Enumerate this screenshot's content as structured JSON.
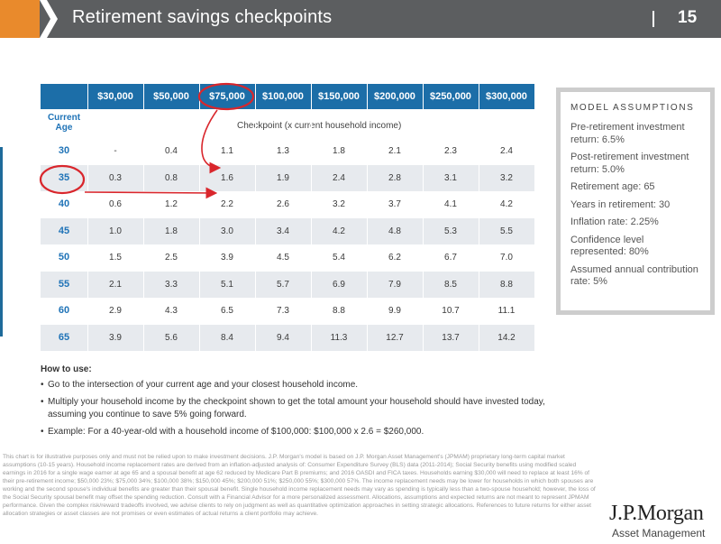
{
  "header": {
    "title": "Retirement savings checkpoints",
    "page_number": "15",
    "bar_color": "#5c5e60",
    "accent_color": "#e98a2c"
  },
  "table": {
    "income_headers": [
      "$30,000",
      "$50,000",
      "$75,000",
      "$100,000",
      "$150,000",
      "$200,000",
      "$250,000",
      "$300,000"
    ],
    "age_header": "Current Age",
    "checkpoint_label": "Checkpoint (x current household income)",
    "header_color": "#1c6ea8",
    "rows": [
      {
        "age": "30",
        "values": [
          "-",
          "0.4",
          "1.1",
          "1.3",
          "1.8",
          "2.1",
          "2.3",
          "2.4"
        ]
      },
      {
        "age": "35",
        "values": [
          "0.3",
          "0.8",
          "1.6",
          "1.9",
          "2.4",
          "2.8",
          "3.1",
          "3.2"
        ]
      },
      {
        "age": "40",
        "values": [
          "0.6",
          "1.2",
          "2.2",
          "2.6",
          "3.2",
          "3.7",
          "4.1",
          "4.2"
        ]
      },
      {
        "age": "45",
        "values": [
          "1.0",
          "1.8",
          "3.0",
          "3.4",
          "4.2",
          "4.8",
          "5.3",
          "5.5"
        ]
      },
      {
        "age": "50",
        "values": [
          "1.5",
          "2.5",
          "3.9",
          "4.5",
          "5.4",
          "6.2",
          "6.7",
          "7.0"
        ]
      },
      {
        "age": "55",
        "values": [
          "2.1",
          "3.3",
          "5.1",
          "5.7",
          "6.9",
          "7.9",
          "8.5",
          "8.8"
        ]
      },
      {
        "age": "60",
        "values": [
          "2.9",
          "4.3",
          "6.5",
          "7.3",
          "8.8",
          "9.9",
          "10.7",
          "11.1"
        ]
      },
      {
        "age": "65",
        "values": [
          "3.9",
          "5.6",
          "8.4",
          "9.4",
          "11.3",
          "12.7",
          "13.7",
          "14.2"
        ]
      }
    ],
    "annotation_color": "#d9262c"
  },
  "assumptions": {
    "title": "MODEL ASSUMPTIONS",
    "items": [
      "Pre-retirement investment return: 6.5%",
      "Post-retirement investment return: 5.0%",
      "Retirement age: 65",
      "Years in retirement: 30",
      "Inflation rate: 2.25%",
      "Confidence level represented: 80%",
      "Assumed annual contribution rate: 5%"
    ]
  },
  "howto": {
    "title": "How to use:",
    "items": [
      "Go to the intersection of your current age and your closest household income.",
      "Multiply your household income by the checkpoint shown to get the total amount your household should have invested today, assuming you continue to save 5% going forward.",
      "Example: For a 40-year-old with a household income of $100,000: $100,000 x 2.6 = $260,000."
    ]
  },
  "disclaimer": "This chart is for illustrative purposes only and must not be relied upon to make investment decisions. J.P. Morgan's model is based on J.P. Morgan Asset Management's (JPMAM) proprietary long-term capital market assumptions (10-15 years). Household income replacement rates are derived from an inflation-adjusted analysis of: Consumer Expenditure Survey (BLS) data (2011-2014); Social Security benefits using modified scaled earnings in 2016 for a single wage earner at age 65 and a spousal benefit at age 62 reduced by Medicare Part B premiums; and 2016 OASDI and FICA taxes. Households earning $30,000 will need to replace at least 16% of their pre-retirement income; $50,000 23%; $75,000 34%; $100,000 38%; $150,000 45%; $200,000 51%; $250,000 55%; $300,000 57%. The income replacement needs may be lower for households in which both spouses are working and the second spouse's individual benefits are greater than their spousal benefit. Single household income replacement needs may vary as spending is typically less than a two-spouse household; however, the loss of the Social Security spousal benefit may offset the spending reduction. Consult with a Financial Advisor for a more personalized assessment. Allocations, assumptions and expected returns are not meant to represent JPMAM performance. Given the complex risk/reward tradeoffs involved, we advise clients to rely on judgment as well as quantitative optimization approaches in setting strategic allocations. References to future returns for either asset allocation strategies or asset classes are not promises or even estimates of actual returns a client portfolio may achieve.",
  "logo": {
    "name": "J.P.Morgan",
    "subtitle": "Asset Management"
  }
}
